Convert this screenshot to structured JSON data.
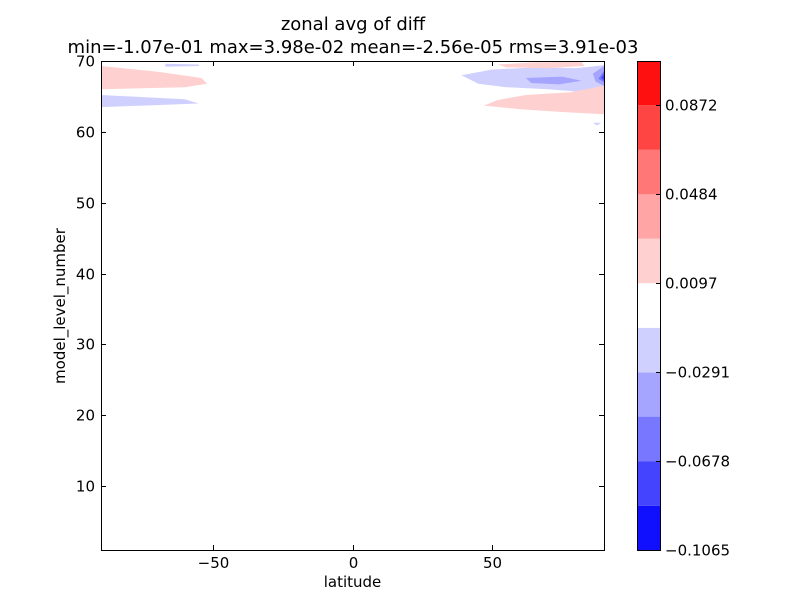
{
  "chart_data": {
    "type": "contour",
    "title": "zonal avg of diff",
    "subtitle": "min=-1.07e-01 max=3.98e-02 mean=-2.56e-05 rms=3.91e-03",
    "xlabel": "latitude",
    "ylabel": "model_level_number",
    "xlim": [
      -90,
      90
    ],
    "ylim": [
      1,
      70
    ],
    "xticks": [
      -50,
      0,
      50
    ],
    "xtick_labels": [
      "−50",
      "0",
      "50"
    ],
    "yticks": [
      10,
      20,
      30,
      40,
      50,
      60,
      70
    ],
    "ytick_labels": [
      "10",
      "20",
      "30",
      "40",
      "50",
      "60",
      "70"
    ],
    "colorbar": {
      "levels": [
        -0.1065,
        -0.0872,
        -0.0678,
        -0.0484,
        -0.0291,
        -0.0097,
        0.0097,
        0.0291,
        0.0484,
        0.0678,
        0.0872,
        0.1065
      ],
      "tick_values": [
        -0.1065,
        -0.0678,
        -0.0291,
        0.0097,
        0.0484,
        0.0872
      ],
      "tick_labels": [
        "−0.1065",
        "−0.0678",
        "−0.0291",
        "0.0097",
        "0.0484",
        "0.0872"
      ],
      "colors": [
        "#1010ff",
        "#4444ff",
        "#7777ff",
        "#a5a5ff",
        "#d0d0ff",
        "#ffffff",
        "#ffd0d0",
        "#ffa5a5",
        "#ff7777",
        "#ff4444",
        "#ff1010"
      ]
    },
    "regions": [
      {
        "name": "low-lat-positive-band",
        "value": 0.015,
        "points": [
          [
            -90,
            66.0
          ],
          [
            -60,
            66.3
          ],
          [
            -52,
            66.8
          ],
          [
            -54,
            67.6
          ],
          [
            -70,
            68.5
          ],
          [
            -90,
            69.3
          ]
        ]
      },
      {
        "name": "low-lat-negative-band",
        "value": -0.015,
        "points": [
          [
            -90,
            63.5
          ],
          [
            -75,
            63.7
          ],
          [
            -55,
            64.0
          ],
          [
            -60,
            64.6
          ],
          [
            -80,
            65.0
          ],
          [
            -90,
            65.2
          ]
        ]
      },
      {
        "name": "low-lat-negative-sliver",
        "value": -0.015,
        "points": [
          [
            -67,
            69.2
          ],
          [
            -55,
            69.3
          ],
          [
            -55,
            69.5
          ],
          [
            -67,
            69.6
          ]
        ]
      },
      {
        "name": "high-lat-negative-band",
        "value": -0.015,
        "points": [
          [
            39,
            68.0
          ],
          [
            50,
            68.8
          ],
          [
            65,
            69.1
          ],
          [
            80,
            69.0
          ],
          [
            90,
            69.4
          ],
          [
            90,
            64.8
          ],
          [
            80,
            65.7
          ],
          [
            70,
            66.0
          ],
          [
            55,
            66.3
          ],
          [
            45,
            66.8
          ]
        ]
      },
      {
        "name": "high-lat-negative-core",
        "value": -0.035,
        "points": [
          [
            62,
            67.6
          ],
          [
            75,
            67.8
          ],
          [
            82,
            67.2
          ],
          [
            74,
            66.7
          ],
          [
            64,
            66.9
          ]
        ]
      },
      {
        "name": "high-lat-positive-band",
        "value": 0.015,
        "points": [
          [
            47,
            63.7
          ],
          [
            52,
            64.5
          ],
          [
            62,
            65.2
          ],
          [
            78,
            65.6
          ],
          [
            90,
            66.5
          ],
          [
            90,
            62.5
          ],
          [
            75,
            62.8
          ],
          [
            60,
            63.2
          ]
        ]
      },
      {
        "name": "high-lat-positive-top",
        "value": 0.015,
        "points": [
          [
            52,
            69.5
          ],
          [
            65,
            69.8
          ],
          [
            82,
            69.9
          ],
          [
            83,
            69.3
          ],
          [
            70,
            69.0
          ],
          [
            55,
            69.1
          ]
        ]
      },
      {
        "name": "edge-negative-1",
        "value": -0.035,
        "points": [
          [
            86,
            68.2
          ],
          [
            90,
            69.3
          ],
          [
            90,
            66.5
          ],
          [
            87,
            67.1
          ]
        ]
      },
      {
        "name": "edge-negative-2",
        "value": -0.055,
        "points": [
          [
            88,
            67.5
          ],
          [
            90,
            68.6
          ],
          [
            90,
            67.0
          ]
        ]
      },
      {
        "name": "edge-negative-3",
        "value": -0.085,
        "points": [
          [
            89,
            67.6
          ],
          [
            90,
            68.2
          ],
          [
            90,
            67.3
          ]
        ]
      },
      {
        "name": "edge-negative-dot",
        "value": -0.015,
        "points": [
          [
            86,
            61.3
          ],
          [
            89,
            61.3
          ],
          [
            87.5,
            60.9
          ]
        ]
      }
    ]
  }
}
